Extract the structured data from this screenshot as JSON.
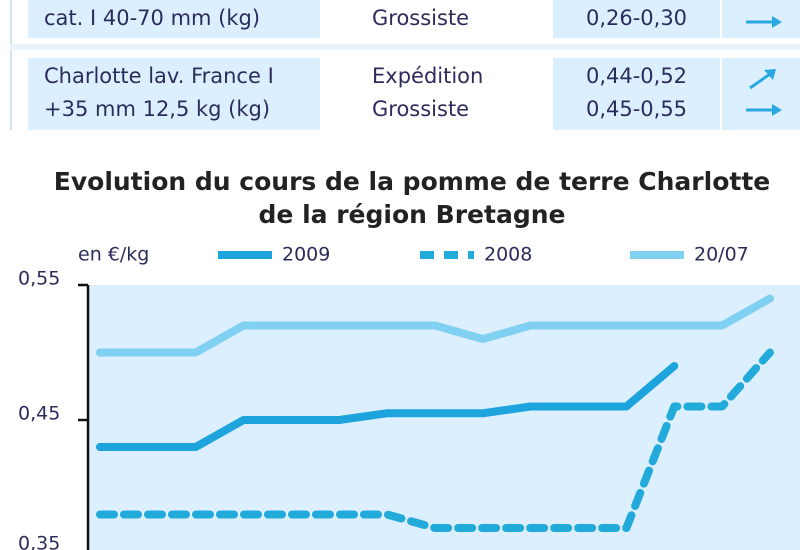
{
  "table": {
    "rows": [
      {
        "product": [
          "cat. I 40-70 mm (kg)"
        ],
        "market": [
          "Grossiste"
        ],
        "price": [
          "0,26-0,30"
        ]
      },
      {
        "product": [
          "Charlotte lav. France I",
          "+35 mm 12,5 kg (kg)"
        ],
        "market": [
          "Expédition",
          "Grossiste"
        ],
        "price": [
          "0,44-0,52",
          "0,45-0,55"
        ]
      }
    ]
  },
  "chart_data": {
    "type": "line",
    "title": [
      "Evolution du cours de la pomme de terre Charlotte",
      "de la région Bretagne"
    ],
    "y_label": "en €/kg",
    "categories": [
      null,
      null,
      null,
      null,
      null,
      null,
      null,
      null,
      null,
      null,
      null,
      null,
      null,
      null,
      null
    ],
    "series": [
      {
        "name": "2009",
        "color": "#1ea4dd",
        "dash": false,
        "values": [
          0.43,
          0.43,
          0.43,
          0.45,
          0.45,
          0.45,
          0.455,
          0.455,
          0.455,
          0.46,
          0.46,
          0.46,
          0.49,
          null,
          null
        ]
      },
      {
        "name": "2008",
        "color": "#22aadb",
        "dash": true,
        "values": [
          0.38,
          0.38,
          0.38,
          0.38,
          0.38,
          0.38,
          0.38,
          0.37,
          0.37,
          0.37,
          0.37,
          0.37,
          0.46,
          0.46,
          0.5
        ]
      },
      {
        "name": "20/07",
        "color": "#80d0f2",
        "dash": false,
        "values": [
          0.5,
          0.5,
          0.5,
          0.52,
          0.52,
          0.52,
          0.52,
          0.52,
          0.51,
          0.52,
          0.52,
          0.52,
          0.52,
          0.52,
          0.54
        ]
      }
    ],
    "ylim": [
      0.35,
      0.55
    ],
    "yticks": [
      {
        "value": 0.55,
        "label": "0,55"
      },
      {
        "value": 0.45,
        "label": "0,45"
      },
      {
        "value": 0.35,
        "label": "0,35"
      }
    ],
    "grid": false
  }
}
